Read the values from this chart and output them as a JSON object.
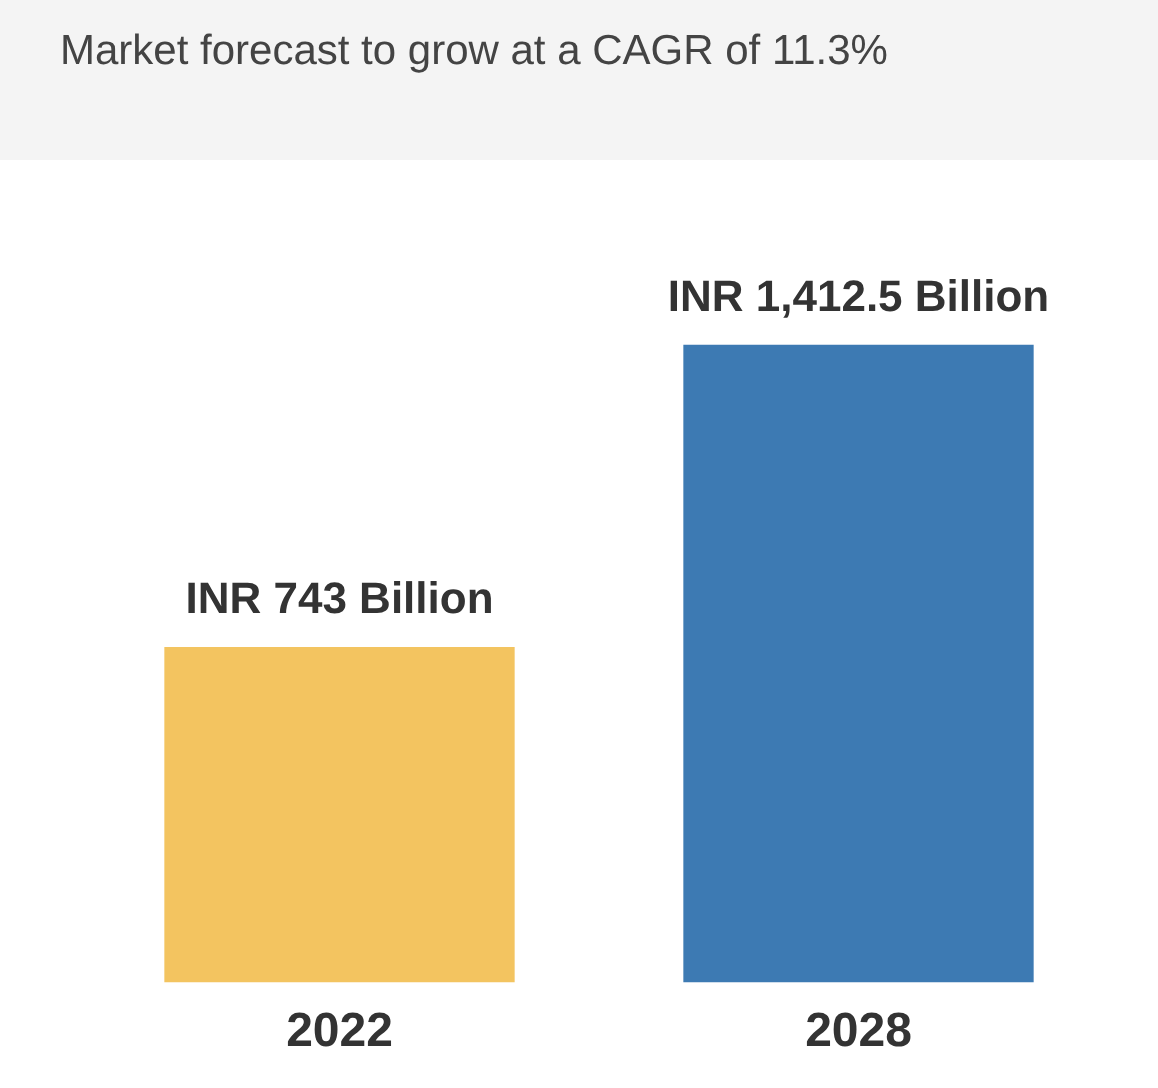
{
  "chart_data": {
    "type": "bar",
    "title": "Market forecast to grow at a CAGR of 11.3%",
    "categories": [
      "2022",
      "2028"
    ],
    "values": [
      743,
      1412.5
    ],
    "colors": [
      "#f3c460",
      "#3d7ab3"
    ],
    "value_labels": [
      "INR 743 Billion",
      "INR 1,412.5 Billion"
    ],
    "legend": false,
    "grid": false
  }
}
